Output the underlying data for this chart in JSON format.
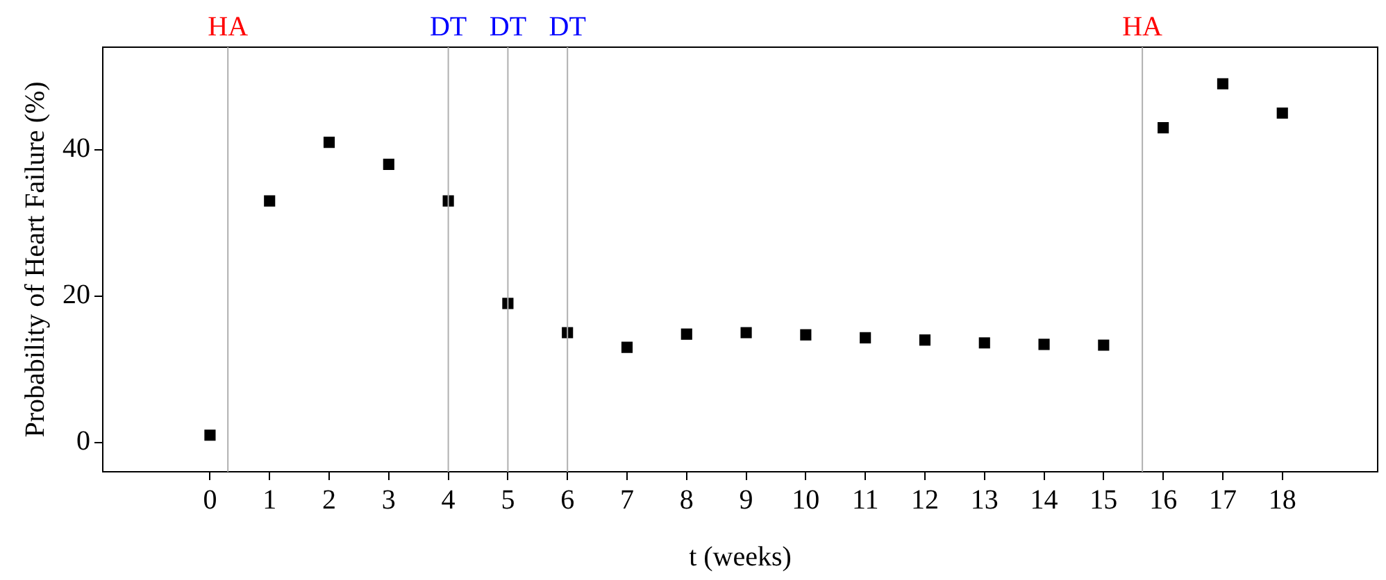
{
  "chart_data": {
    "type": "scatter",
    "xlabel": "t (weeks)",
    "ylabel": "Probability of Heart Failure (%)",
    "x": [
      0,
      1,
      2,
      3,
      4,
      5,
      6,
      7,
      8,
      9,
      10,
      11,
      12,
      13,
      14,
      15,
      16,
      17,
      18
    ],
    "series": [
      {
        "color": "#000000",
        "values": [
          1,
          33,
          41,
          38,
          33,
          19,
          15,
          13,
          14.8,
          15,
          14.7,
          14.3,
          14,
          13.6,
          13.4,
          13.3,
          43,
          49,
          45
        ]
      }
    ],
    "xlim": [
      -1.8,
      19.6
    ],
    "xticks": [
      0,
      1,
      2,
      3,
      4,
      5,
      6,
      7,
      8,
      9,
      10,
      11,
      12,
      13,
      14,
      15,
      16,
      17,
      18
    ],
    "ylim": [
      -4,
      54
    ],
    "yticks": [
      0,
      20,
      40
    ],
    "marker": "square",
    "grid": false,
    "legend": false,
    "ref_lines": [
      {
        "axis": "x",
        "value": 0.3,
        "label": "HA",
        "color": "#b0b0b0"
      },
      {
        "axis": "x",
        "value": 4,
        "label": "DT",
        "color": "#b0b0b0"
      },
      {
        "axis": "x",
        "value": 5,
        "label": "DT",
        "color": "#b0b0b0"
      },
      {
        "axis": "x",
        "value": 6,
        "label": "DT",
        "color": "#b0b0b0"
      },
      {
        "axis": "x",
        "value": 15.65,
        "label": "HA",
        "color": "#b0b0b0"
      }
    ]
  }
}
